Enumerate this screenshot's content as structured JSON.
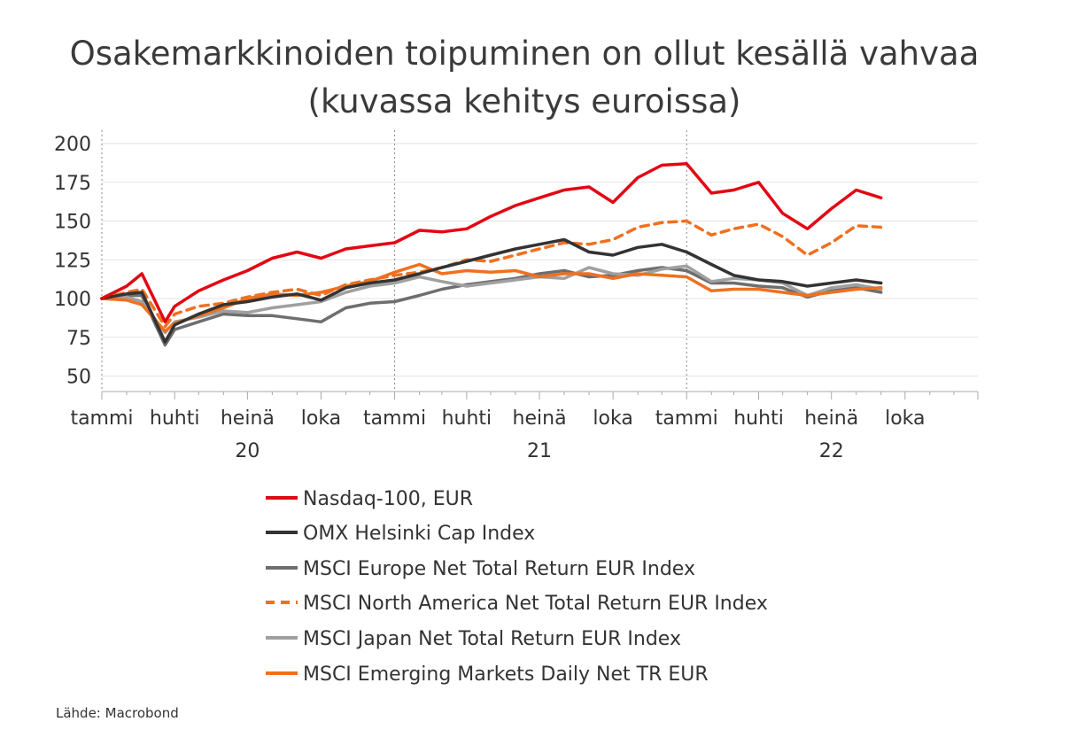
{
  "chart_data": {
    "type": "line",
    "title_line1": "Osakemarkkinoiden toipuminen on ollut kesällä vahvaa",
    "title_line2": "(kuvassa kehitys euroissa)",
    "ylim": [
      45,
      205
    ],
    "yticks": [
      200,
      175,
      150,
      125,
      100,
      75,
      50
    ],
    "x_month_labels": [
      "tammi",
      "huhti",
      "heinä",
      "loka",
      "tammi",
      "huhti",
      "heinä",
      "loka",
      "tammi",
      "huhti",
      "heinä",
      "loka"
    ],
    "x_year_labels": [
      "20",
      "21",
      "22"
    ],
    "grid": true,
    "legend_position": "bottom",
    "source": "Lähde: Macrobond",
    "series": [
      {
        "name": "Nasdaq-100, EUR",
        "color": "#e30613",
        "dash": false,
        "x": [
          "2020-01",
          "2020-02",
          "2020-02-20",
          "2020-03-20",
          "2020-04",
          "2020-05",
          "2020-06",
          "2020-07",
          "2020-08",
          "2020-09",
          "2020-10",
          "2020-11",
          "2020-12",
          "2021-01",
          "2021-02",
          "2021-03",
          "2021-04",
          "2021-05",
          "2021-06",
          "2021-07",
          "2021-08",
          "2021-09",
          "2021-10",
          "2021-11",
          "2021-12",
          "2022-01",
          "2022-02",
          "2022-03",
          "2022-04",
          "2022-05",
          "2022-06",
          "2022-07",
          "2022-08",
          "2022-09"
        ],
        "values": [
          100,
          108,
          116,
          85,
          95,
          105,
          112,
          118,
          126,
          130,
          126,
          132,
          134,
          136,
          144,
          143,
          145,
          153,
          160,
          165,
          170,
          172,
          162,
          178,
          186,
          187,
          168,
          170,
          175,
          155,
          145,
          158,
          170,
          165
        ]
      },
      {
        "name": "OMX Helsinki Cap Index",
        "color": "#333333",
        "dash": false,
        "x": [
          "2020-01",
          "2020-02",
          "2020-02-20",
          "2020-03-20",
          "2020-04",
          "2020-05",
          "2020-06",
          "2020-07",
          "2020-08",
          "2020-09",
          "2020-10",
          "2020-11",
          "2020-12",
          "2021-01",
          "2021-02",
          "2021-03",
          "2021-04",
          "2021-05",
          "2021-06",
          "2021-07",
          "2021-08",
          "2021-09",
          "2021-10",
          "2021-11",
          "2021-12",
          "2022-01",
          "2022-02",
          "2022-03",
          "2022-04",
          "2022-05",
          "2022-06",
          "2022-07",
          "2022-08",
          "2022-09"
        ],
        "values": [
          100,
          103,
          104,
          72,
          83,
          90,
          96,
          98,
          101,
          103,
          99,
          107,
          110,
          112,
          116,
          120,
          124,
          128,
          132,
          135,
          138,
          130,
          128,
          133,
          135,
          130,
          122,
          115,
          112,
          111,
          108,
          110,
          112,
          110
        ]
      },
      {
        "name": "MSCI Europe Net Total Return EUR Index",
        "color": "#6e6e6e",
        "dash": false,
        "x": [
          "2020-01",
          "2020-02",
          "2020-02-20",
          "2020-03-20",
          "2020-04",
          "2020-05",
          "2020-06",
          "2020-07",
          "2020-08",
          "2020-09",
          "2020-10",
          "2020-11",
          "2020-12",
          "2021-01",
          "2021-02",
          "2021-03",
          "2021-04",
          "2021-05",
          "2021-06",
          "2021-07",
          "2021-08",
          "2021-09",
          "2021-10",
          "2021-11",
          "2021-12",
          "2022-01",
          "2022-02",
          "2022-03",
          "2022-04",
          "2022-05",
          "2022-06",
          "2022-07",
          "2022-08",
          "2022-09"
        ],
        "values": [
          100,
          102,
          102,
          70,
          80,
          85,
          90,
          89,
          89,
          87,
          85,
          94,
          97,
          98,
          102,
          106,
          109,
          111,
          113,
          116,
          118,
          114,
          115,
          118,
          120,
          118,
          110,
          110,
          108,
          107,
          101,
          105,
          107,
          104
        ]
      },
      {
        "name": "MSCI North America Net Total Return EUR Index",
        "color": "#f07020",
        "dash": true,
        "x": [
          "2020-01",
          "2020-02",
          "2020-02-20",
          "2020-03-20",
          "2020-04",
          "2020-05",
          "2020-06",
          "2020-07",
          "2020-08",
          "2020-09",
          "2020-10",
          "2020-11",
          "2020-12",
          "2021-01",
          "2021-02",
          "2021-03",
          "2021-04",
          "2021-05",
          "2021-06",
          "2021-07",
          "2021-08",
          "2021-09",
          "2021-10",
          "2021-11",
          "2021-12",
          "2022-01",
          "2022-02",
          "2022-03",
          "2022-04",
          "2022-05",
          "2022-06",
          "2022-07",
          "2022-08",
          "2022-09"
        ],
        "values": [
          100,
          104,
          106,
          82,
          90,
          95,
          97,
          101,
          104,
          106,
          102,
          109,
          112,
          115,
          117,
          120,
          125,
          124,
          128,
          132,
          136,
          135,
          138,
          146,
          149,
          150,
          141,
          145,
          148,
          140,
          128,
          136,
          147,
          146
        ]
      },
      {
        "name": "MSCI Japan Net Total Return EUR Index",
        "color": "#a0a0a0",
        "dash": false,
        "x": [
          "2020-01",
          "2020-02",
          "2020-02-20",
          "2020-03-20",
          "2020-04",
          "2020-05",
          "2020-06",
          "2020-07",
          "2020-08",
          "2020-09",
          "2020-10",
          "2020-11",
          "2020-12",
          "2021-01",
          "2021-02",
          "2021-03",
          "2021-04",
          "2021-05",
          "2021-06",
          "2021-07",
          "2021-08",
          "2021-09",
          "2021-10",
          "2021-11",
          "2021-12",
          "2022-01",
          "2022-02",
          "2022-03",
          "2022-04",
          "2022-05",
          "2022-06",
          "2022-07",
          "2022-08",
          "2022-09"
        ],
        "values": [
          100,
          101,
          98,
          78,
          85,
          88,
          92,
          91,
          94,
          96,
          98,
          104,
          108,
          110,
          114,
          111,
          108,
          110,
          112,
          114,
          113,
          120,
          116,
          115,
          119,
          121,
          111,
          113,
          112,
          110,
          102,
          107,
          109,
          106
        ]
      },
      {
        "name": "MSCI Emerging Markets Daily Net TR EUR",
        "color": "#f07020",
        "dash": false,
        "x": [
          "2020-01",
          "2020-02",
          "2020-02-20",
          "2020-03-20",
          "2020-04",
          "2020-05",
          "2020-06",
          "2020-07",
          "2020-08",
          "2020-09",
          "2020-10",
          "2020-11",
          "2020-12",
          "2021-01",
          "2021-02",
          "2021-03",
          "2021-04",
          "2021-05",
          "2021-06",
          "2021-07",
          "2021-08",
          "2021-09",
          "2021-10",
          "2021-11",
          "2021-12",
          "2022-01",
          "2022-02",
          "2022-03",
          "2022-04",
          "2022-05",
          "2022-06",
          "2022-07",
          "2022-08",
          "2022-09"
        ],
        "values": [
          100,
          99,
          96,
          79,
          84,
          89,
          94,
          100,
          103,
          102,
          104,
          108,
          111,
          117,
          122,
          116,
          118,
          117,
          118,
          114,
          116,
          116,
          113,
          116,
          115,
          114,
          105,
          106,
          106,
          104,
          102,
          104,
          106,
          107
        ]
      }
    ]
  }
}
